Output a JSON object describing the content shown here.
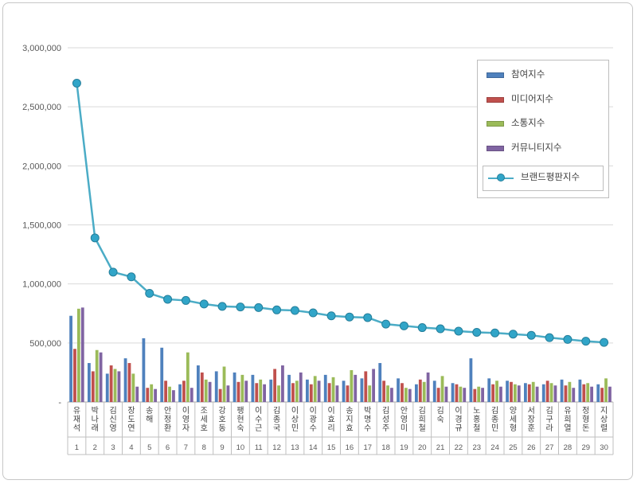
{
  "frame": {
    "background": "#ffffff",
    "border_color": "#c6c6c6"
  },
  "legend": {
    "position": "upper right"
  },
  "chart_data": {
    "type": "bar",
    "subtype": "grouped bars with overlaid line (brand reputation ranking chart)",
    "categories": [
      "유재석",
      "박나래",
      "김신영",
      "장도연",
      "송해",
      "안정환",
      "이영자",
      "조세호",
      "강호동",
      "팽현숙",
      "이수근",
      "김종국",
      "이상민",
      "이광수",
      "이효리",
      "송지효",
      "박명수",
      "김성주",
      "안영미",
      "김희철",
      "김숙",
      "이경규",
      "노홍철",
      "김종민",
      "양세형",
      "서장훈",
      "김구라",
      "유희열",
      "정형돈",
      "지상렬"
    ],
    "ranks": [
      "1",
      "2",
      "3",
      "4",
      "5",
      "6",
      "7",
      "8",
      "9",
      "10",
      "11",
      "12",
      "13",
      "14",
      "15",
      "16",
      "17",
      "18",
      "19",
      "20",
      "21",
      "22",
      "23",
      "24",
      "25",
      "26",
      "27",
      "28",
      "29",
      "30"
    ],
    "series": [
      {
        "name": "참여지수",
        "type": "bar",
        "color": "#4f81bd",
        "values": [
          730000,
          330000,
          240000,
          370000,
          540000,
          460000,
          150000,
          310000,
          260000,
          250000,
          230000,
          190000,
          230000,
          190000,
          230000,
          180000,
          200000,
          330000,
          200000,
          150000,
          180000,
          160000,
          370000,
          200000,
          180000,
          160000,
          150000,
          190000,
          190000,
          150000
        ]
      },
      {
        "name": "미디어지수",
        "type": "bar",
        "color": "#c0504d",
        "values": [
          450000,
          260000,
          310000,
          330000,
          120000,
          180000,
          180000,
          250000,
          110000,
          170000,
          160000,
          280000,
          160000,
          150000,
          160000,
          140000,
          260000,
          180000,
          160000,
          190000,
          120000,
          150000,
          110000,
          150000,
          170000,
          150000,
          180000,
          140000,
          150000,
          120000
        ]
      },
      {
        "name": "소통지수",
        "type": "bar",
        "color": "#9bbb59",
        "values": [
          790000,
          440000,
          280000,
          240000,
          150000,
          130000,
          420000,
          190000,
          300000,
          230000,
          190000,
          140000,
          180000,
          220000,
          210000,
          270000,
          140000,
          140000,
          120000,
          170000,
          220000,
          130000,
          130000,
          180000,
          150000,
          170000,
          160000,
          170000,
          160000,
          200000
        ]
      },
      {
        "name": "커뮤니티지수",
        "type": "bar",
        "color": "#8064a2",
        "values": [
          800000,
          420000,
          260000,
          130000,
          110000,
          100000,
          120000,
          170000,
          140000,
          180000,
          150000,
          310000,
          250000,
          180000,
          140000,
          230000,
          280000,
          120000,
          110000,
          250000,
          130000,
          120000,
          120000,
          130000,
          140000,
          130000,
          140000,
          120000,
          130000,
          130000
        ]
      },
      {
        "name": "브랜드평판지수",
        "type": "line",
        "color": "#4bacc6",
        "marker_fill": "#31a5c8",
        "marker_stroke": "#257f9b",
        "values": [
          2700000,
          1390000,
          1100000,
          1060000,
          920000,
          870000,
          860000,
          830000,
          810000,
          805000,
          800000,
          780000,
          775000,
          755000,
          730000,
          720000,
          715000,
          660000,
          645000,
          630000,
          620000,
          600000,
          590000,
          585000,
          575000,
          565000,
          545000,
          530000,
          515000,
          505000
        ]
      }
    ],
    "y_axis": {
      "min": 0,
      "max": 3000000,
      "step": 500000,
      "tick_labels": [
        "-",
        "500,000",
        "1,000,000",
        "1,500,000",
        "2,000,000",
        "2,500,000",
        "3,000,000"
      ]
    },
    "grid": true,
    "legend_position": "upper right"
  }
}
